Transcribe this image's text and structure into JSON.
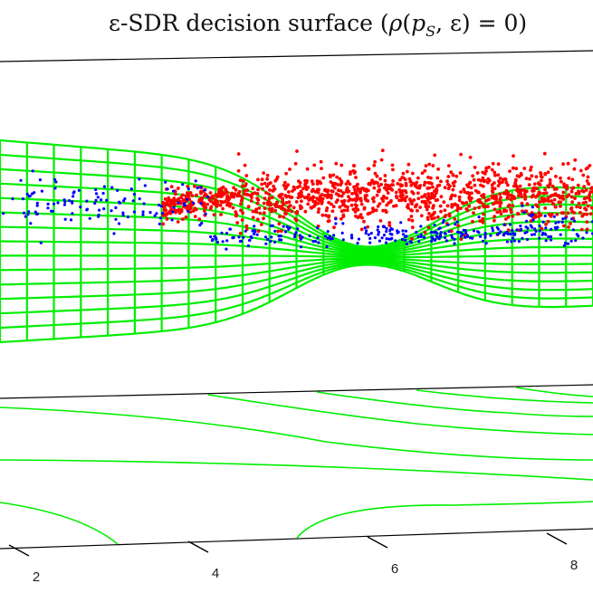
{
  "chart_data": {
    "type": "scatter",
    "title": "ε-SDR decision surface (ρ(p_S, ε) = 0)",
    "title_parts": {
      "prefix": "ε-SDR decision surface (",
      "rho": "ρ",
      "open": "(",
      "p": "p",
      "sub": "S",
      "mid": ", ε) = 0)"
    },
    "xlabel": "",
    "ylabel": "",
    "x_ticks": [
      "2",
      "4",
      "6",
      "8"
    ],
    "grid": false,
    "legend": "none",
    "colors": {
      "class_a": "#ff0000",
      "class_b": "#0000ff",
      "surface": "#00ee00",
      "axes": "#000000"
    },
    "series": [
      {
        "color": "red",
        "marker": "point",
        "approx_points": 1200
      },
      {
        "color": "blue",
        "marker": "point",
        "approx_points": 400
      }
    ],
    "surface": {
      "type": "mesh",
      "color": "green",
      "contours_projected": true
    }
  }
}
